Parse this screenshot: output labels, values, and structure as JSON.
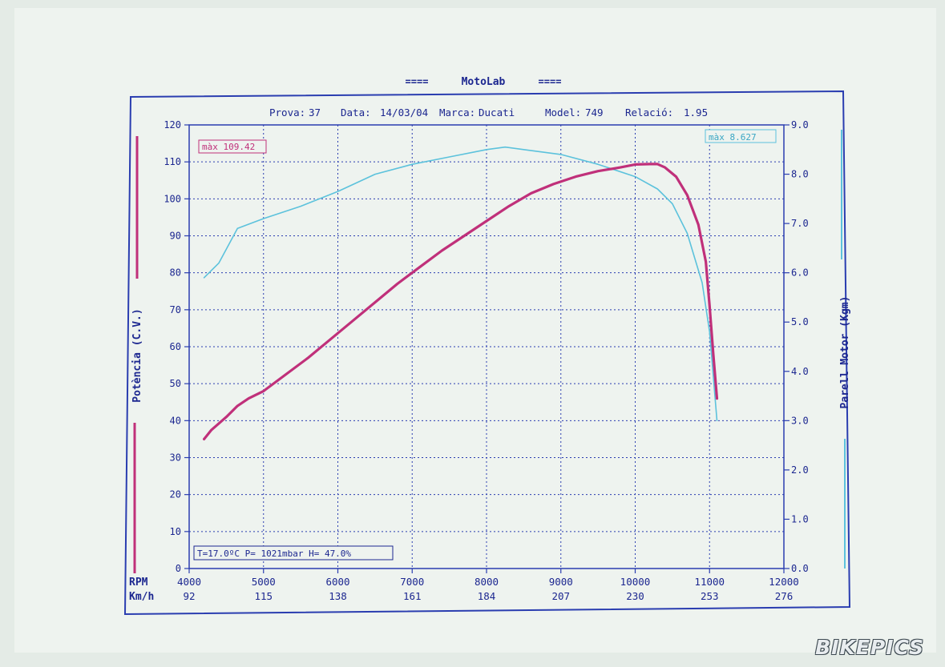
{
  "header": {
    "title": "MotoLab",
    "title_deco": "====",
    "info": {
      "prova_label": "Prova:",
      "prova": "37",
      "data_label": "Data:",
      "data": "14/03/04",
      "marca_label": "Marca:",
      "marca": "Ducati",
      "model_label": "Model:",
      "model": "749",
      "relacio_label": "Relació:",
      "relacio": "1.95"
    }
  },
  "colors": {
    "power": "#c0307a",
    "torque": "#5cc2dc",
    "frame": "#2a3db0",
    "text": "#1c2790"
  },
  "watermark": "BIKEPICS",
  "chart_data": {
    "type": "line",
    "x_label": "RPM",
    "x2_label": "Km/h",
    "x_ticks": [
      "4000",
      "5000",
      "6000",
      "7000",
      "8000",
      "9000",
      "10000",
      "11000",
      "12000"
    ],
    "x2_ticks": [
      "92",
      "115",
      "138",
      "161",
      "184",
      "207",
      "230",
      "253",
      "276"
    ],
    "xlim": [
      4000,
      12000
    ],
    "y_left": {
      "label": "Potència (C.V.)",
      "lim": [
        0,
        120
      ],
      "ticks": [
        "0",
        "10",
        "20",
        "30",
        "40",
        "50",
        "60",
        "70",
        "80",
        "90",
        "100",
        "110",
        "120"
      ]
    },
    "y_right": {
      "label": "Parell Motor (Kgm)",
      "lim": [
        0,
        9
      ],
      "ticks": [
        "0.0",
        "1.0",
        "2.0",
        "3.0",
        "4.0",
        "5.0",
        "6.0",
        "7.0",
        "8.0",
        "9.0"
      ]
    },
    "grid": true,
    "annotations": {
      "max_power": "màx 109.42",
      "max_torque": "màx 8.627",
      "conditions": "T=17.0ºC P= 1021mbar H= 47.0%"
    },
    "series": [
      {
        "axis": "left",
        "color": "#c0307a",
        "x": [
          4200,
          4300,
          4500,
          4650,
          4800,
          5000,
          5300,
          5600,
          5900,
          6200,
          6500,
          6800,
          7100,
          7400,
          7700,
          8000,
          8300,
          8600,
          8900,
          9200,
          9500,
          9800,
          10000,
          10200,
          10300,
          10400,
          10550,
          10700,
          10850,
          10950,
          11000,
          11050,
          11100
        ],
        "y": [
          35,
          37.5,
          41,
          44,
          46,
          48,
          52.5,
          57,
          62,
          67,
          72,
          77,
          81.5,
          86,
          90,
          94,
          98,
          101.5,
          104,
          106,
          107.5,
          108.5,
          109.3,
          109.4,
          109.4,
          108.5,
          106,
          101,
          93,
          83,
          71,
          58,
          46
        ]
      },
      {
        "axis": "right",
        "color": "#5cc2dc",
        "x": [
          4200,
          4400,
          4650,
          5000,
          5500,
          6000,
          6500,
          7000,
          7500,
          8000,
          8250,
          8500,
          9000,
          9500,
          10000,
          10300,
          10500,
          10700,
          10900,
          11000,
          11050,
          11100
        ],
        "y": [
          5.9,
          6.2,
          6.9,
          7.1,
          7.35,
          7.65,
          8.0,
          8.2,
          8.35,
          8.5,
          8.55,
          8.5,
          8.4,
          8.2,
          7.95,
          7.7,
          7.4,
          6.8,
          5.8,
          4.8,
          3.9,
          3.0
        ]
      }
    ]
  }
}
